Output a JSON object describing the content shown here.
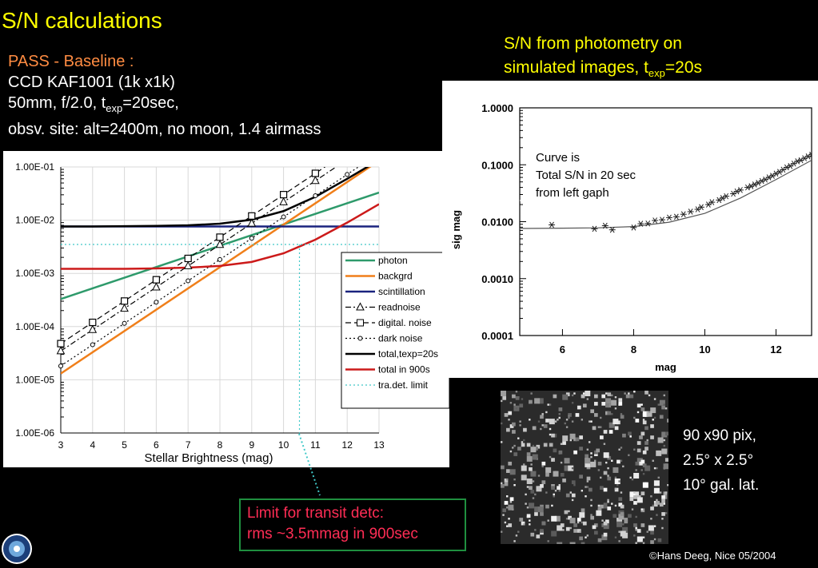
{
  "slide": {
    "title": "S/N calculations",
    "setup": {
      "line1": "PASS - Baseline :",
      "line2": "CCD KAF1001 (1k x1k)",
      "line3_pre": "50mm, f/2.0, t",
      "line3_sub": "exp",
      "line3_post": "=20sec,",
      "line4": "obsv. site: alt=2400m, no moon, 1.4 airmass"
    },
    "right_title": {
      "line1": "S/N from photometry on",
      "line2_pre": "simulated images, t",
      "line2_sub": "exp",
      "line2_post": "=20s"
    },
    "image_caption": {
      "line1": "90 x90 pix,",
      "line2": "2.5° x 2.5°",
      "line3": "10° gal. lat."
    },
    "limit_note": {
      "line1": "Limit for transit detc:",
      "line2": "rms ~3.5mmag in 900sec"
    },
    "copyright": "©Hans Deeg, Nice 05/2004",
    "colors": {
      "title": "#ffff00",
      "setup_highlight": "#ff8c42",
      "limit_text": "#ff2d55",
      "limit_border": "#1f8f3f"
    }
  },
  "chart_data": [
    {
      "type": "line",
      "title": "",
      "xlabel": "Stellar Brightness (mag)",
      "ylabel": "",
      "xlim": [
        3,
        13
      ],
      "ylim_log10": [
        -6,
        -1
      ],
      "x_ticks": [
        "3",
        "4",
        "5",
        "6",
        "7",
        "8",
        "9",
        "10",
        "11",
        "12",
        "13"
      ],
      "y_ticks": [
        "1.00E-06",
        "1.00E-05",
        "1.00E-04",
        "1.00E-03",
        "1.00E-02",
        "1.00E-01"
      ],
      "legend_position": "right",
      "series": [
        {
          "name": "photon",
          "color": "#2e9a6b",
          "style": "solid",
          "x": [
            3,
            13
          ],
          "y": [
            0.00033,
            0.033
          ]
        },
        {
          "name": "backgrd",
          "color": "#f07f1a",
          "style": "solid",
          "x": [
            3,
            13
          ],
          "y": [
            1.31e-05,
            0.131
          ]
        },
        {
          "name": "scintillation",
          "color": "#1a237e",
          "style": "solid",
          "x": [
            3,
            13
          ],
          "y": [
            0.0076,
            0.0076
          ]
        },
        {
          "name": "readnoise",
          "color": "#000000",
          "style": "dashdot",
          "marker": "triangle",
          "x": [
            3,
            4,
            5,
            6,
            7,
            8,
            9,
            10,
            11,
            12,
            13
          ],
          "y": [
            3.47e-05,
            8.71e-05,
            0.000219,
            0.00055,
            0.00138,
            0.00347,
            0.00871,
            0.0219,
            0.055,
            0.138,
            0.347
          ]
        },
        {
          "name": "digital. noise",
          "color": "#000000",
          "style": "dash",
          "marker": "square",
          "x": [
            3,
            4,
            5,
            6,
            7,
            8,
            9,
            10,
            11,
            12,
            13
          ],
          "y": [
            4.79e-05,
            0.00012,
            0.000302,
            0.000759,
            0.00191,
            0.00479,
            0.012,
            0.0302,
            0.0759,
            0.191,
            0.479
          ]
        },
        {
          "name": "dark noise",
          "color": "#000000",
          "style": "dot",
          "marker": "circle",
          "x": [
            3,
            4,
            5,
            6,
            7,
            8,
            9,
            10,
            11,
            12,
            13
          ],
          "y": [
            1.82e-05,
            4.57e-05,
            0.000115,
            0.000288,
            0.000724,
            0.00182,
            0.00457,
            0.0115,
            0.0288,
            0.0724,
            0.182
          ]
        },
        {
          "name": "total,texp=20s",
          "color": "#000000",
          "style": "solid",
          "x": [
            3,
            4,
            5,
            6,
            7,
            8,
            9,
            10,
            11,
            12,
            13
          ],
          "y": [
            0.0076,
            0.0076,
            0.0077,
            0.0078,
            0.008,
            0.0086,
            0.0102,
            0.0148,
            0.0275,
            0.06,
            0.135
          ]
        },
        {
          "name": "total in 900s",
          "color": "#cc1a1a",
          "style": "solid",
          "x": [
            3,
            4,
            5,
            6,
            7,
            8,
            9,
            10,
            11,
            12,
            13
          ],
          "y": [
            0.00122,
            0.00122,
            0.00122,
            0.00124,
            0.00128,
            0.00138,
            0.00164,
            0.00238,
            0.0043,
            0.009,
            0.02
          ]
        },
        {
          "name": "tra.det. limit",
          "color": "#40c8c8",
          "style": "dot",
          "x": [
            3,
            13
          ],
          "y": [
            0.0035,
            0.0035
          ]
        }
      ]
    },
    {
      "type": "scatter",
      "title": "",
      "xlabel": "mag",
      "ylabel": "sig mag",
      "xlim": [
        4.8,
        13
      ],
      "ylim_log10": [
        -4,
        0
      ],
      "x_ticks": [
        "6",
        "8",
        "10",
        "12"
      ],
      "y_ticks": [
        "1.0000",
        "0.1000",
        "0.0100",
        "0.0010",
        "0.0001"
      ],
      "annotation": {
        "line1": "Curve is",
        "line2": "Total S/N in 20 sec",
        "line3": "from left gaph"
      },
      "points_x": [
        5.7,
        6.9,
        7.2,
        7.4,
        8,
        8.2,
        8.4,
        8.6,
        8.8,
        9,
        9.2,
        9.4,
        9.6,
        9.8,
        9.9,
        10.1,
        10.2,
        10.4,
        10.5,
        10.6,
        10.8,
        10.9,
        11,
        11.2,
        11.3,
        11.4,
        11.5,
        11.6,
        11.7,
        11.8,
        11.9,
        12,
        12.1,
        12.2,
        12.3,
        12.4,
        12.5,
        12.6,
        12.7,
        12.8,
        12.9,
        13
      ],
      "points_y": [
        0.0088,
        0.0075,
        0.0085,
        0.0072,
        0.0079,
        0.0092,
        0.0093,
        0.0105,
        0.0108,
        0.0118,
        0.0122,
        0.0135,
        0.015,
        0.0165,
        0.018,
        0.02,
        0.022,
        0.024,
        0.026,
        0.028,
        0.031,
        0.034,
        0.036,
        0.04,
        0.042,
        0.045,
        0.048,
        0.052,
        0.055,
        0.06,
        0.064,
        0.07,
        0.075,
        0.082,
        0.09,
        0.095,
        0.105,
        0.115,
        0.12,
        0.13,
        0.14,
        0.15
      ],
      "curve_x": [
        4.8,
        6,
        7,
        8,
        9,
        10,
        11,
        12,
        13
      ],
      "curve_y": [
        0.0076,
        0.0077,
        0.0078,
        0.0082,
        0.0098,
        0.014,
        0.026,
        0.055,
        0.12
      ]
    }
  ]
}
